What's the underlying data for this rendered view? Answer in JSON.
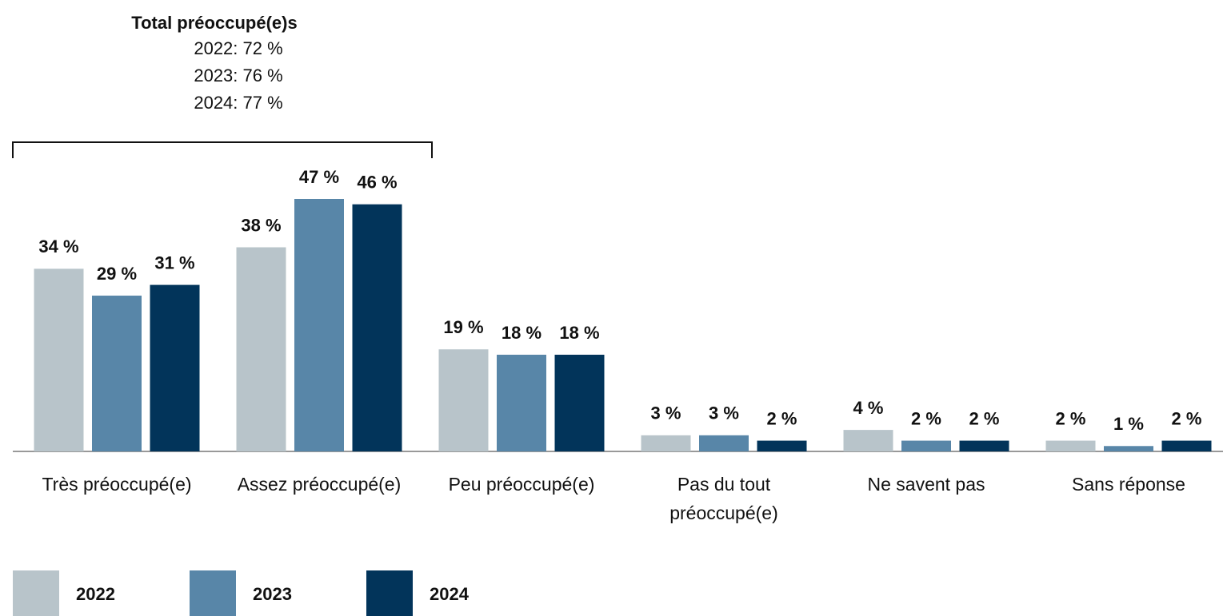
{
  "chart_data": {
    "type": "bar",
    "annotation": {
      "title": "Total préoccupé(e)s",
      "lines": [
        "2022: 72 %",
        "2023: 76 %",
        "2024: 77 %"
      ]
    },
    "categories": [
      "Très préoccupé(e)",
      "Assez préoccupé(e)",
      "Peu préoccupé(e)",
      "Pas du tout préoccupé(e)",
      "Ne savent pas",
      "Sans réponse"
    ],
    "series": [
      {
        "name": "2022",
        "color": "#b8c4ca",
        "values": [
          34,
          38,
          19,
          3,
          4,
          2
        ],
        "value_labels": [
          "34 %",
          "38 %",
          "19 %",
          "3 %",
          "4 %",
          "2 %"
        ]
      },
      {
        "name": "2023",
        "color": "#5886a8",
        "values": [
          29,
          47,
          18,
          3,
          2,
          1
        ],
        "value_labels": [
          "29 %",
          "47 %",
          "18 %",
          "3 %",
          "2 %",
          "1 %"
        ]
      },
      {
        "name": "2024",
        "color": "#02345a",
        "values": [
          31,
          46,
          18,
          2,
          2,
          2
        ],
        "value_labels": [
          "31 %",
          "46 %",
          "18 %",
          "2 %",
          "2 %",
          "2 %"
        ]
      }
    ]
  }
}
